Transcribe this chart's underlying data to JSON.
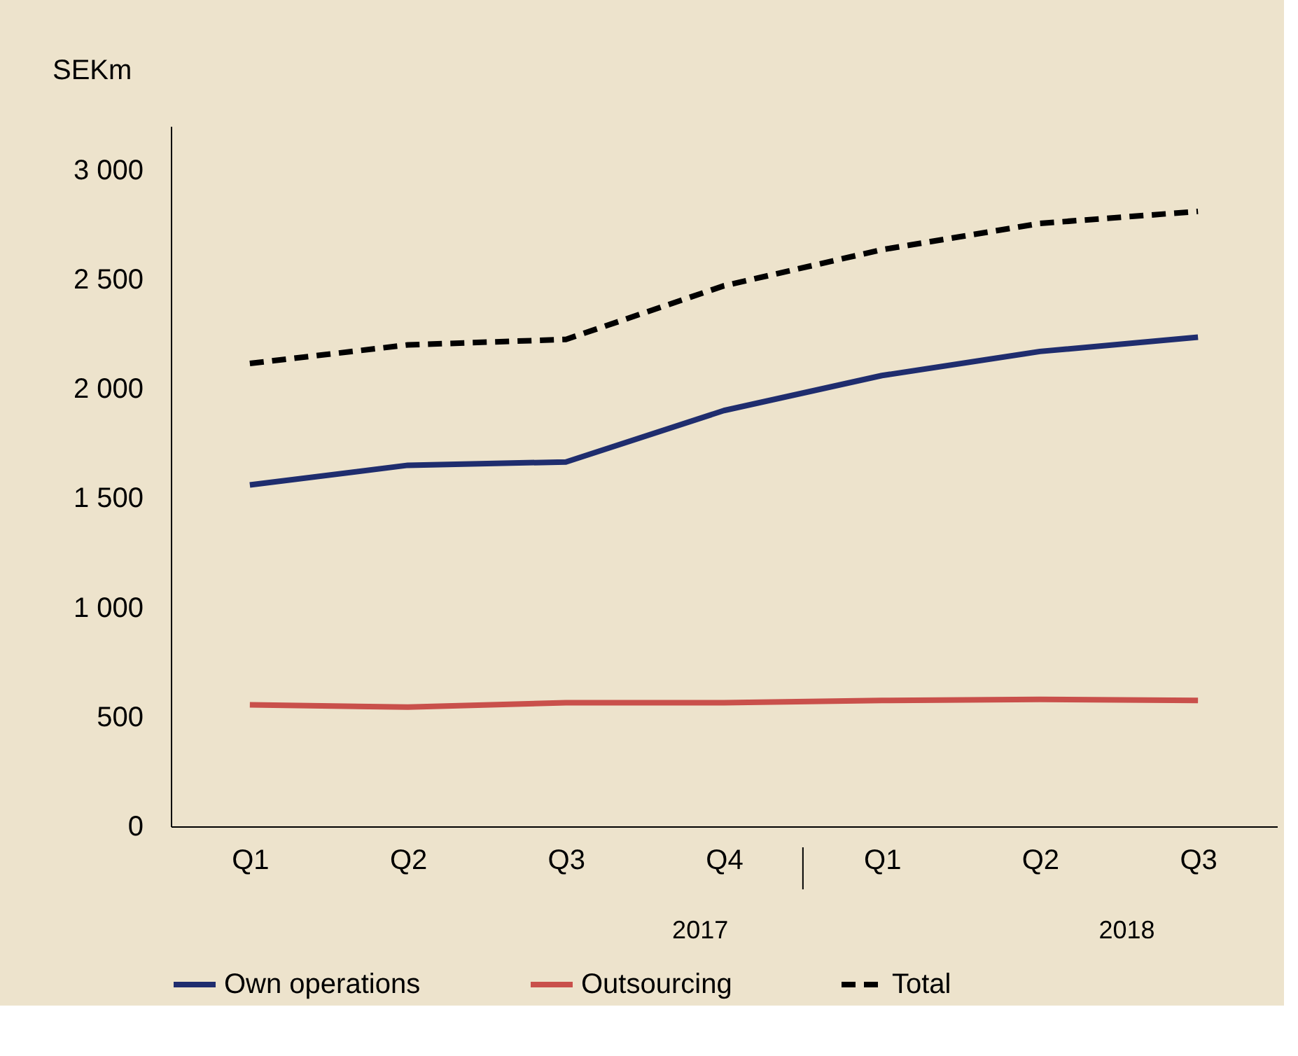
{
  "chart_data": {
    "type": "line",
    "ylabel": "SEKm",
    "categories": [
      "Q1",
      "Q2",
      "Q3",
      "Q4",
      "Q1",
      "Q2",
      "Q3"
    ],
    "series": [
      {
        "name": "Own operations",
        "color": "#1f2d6e",
        "line_style": "solid",
        "values": [
          1560,
          1650,
          1665,
          1900,
          2060,
          2170,
          2235
        ]
      },
      {
        "name": "Outsourcing",
        "color": "#c9504b",
        "line_style": "solid",
        "values": [
          555,
          545,
          565,
          565,
          575,
          580,
          575
        ]
      },
      {
        "name": "Total",
        "color": "#000000",
        "line_style": "dashed",
        "values": [
          2115,
          2200,
          2225,
          2470,
          2635,
          2755,
          2810
        ]
      }
    ],
    "ylim": [
      0,
      3200
    ],
    "yticks": [
      {
        "value": 0,
        "label": "0"
      },
      {
        "value": 500,
        "label": "500"
      },
      {
        "value": 1000,
        "label": "1 000"
      },
      {
        "value": 1500,
        "label": "1 500"
      },
      {
        "value": 2000,
        "label": "2 000"
      },
      {
        "value": 2500,
        "label": "2 500"
      },
      {
        "value": 3000,
        "label": "3 000"
      }
    ],
    "annotations": [
      "2017",
      "2018"
    ],
    "grid": false,
    "legend": "bottom",
    "marker": "none"
  }
}
